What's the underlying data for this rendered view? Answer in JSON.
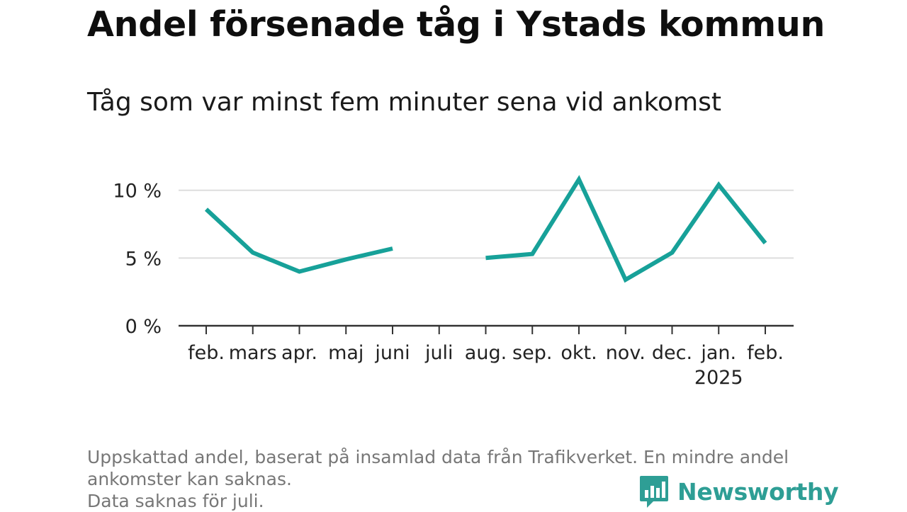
{
  "header": {
    "title": "Andel försenade tåg i Ystads kommun",
    "subtitle": "Tåg som var minst fem minuter sena vid ankomst"
  },
  "chart_data": {
    "type": "line",
    "categories": [
      "feb.",
      "mars",
      "apr.",
      "maj",
      "juni",
      "juli",
      "aug.",
      "sep.",
      "okt.",
      "nov.",
      "dec.",
      "jan.",
      "feb."
    ],
    "category_sublabels": [
      "",
      "",
      "",
      "",
      "",
      "",
      "",
      "",
      "",
      "",
      "",
      "2025",
      ""
    ],
    "series": [
      {
        "values": [
          8.6,
          5.4,
          4.0,
          4.9,
          5.7,
          null,
          5.0,
          5.3,
          10.8,
          3.4,
          5.4,
          10.4,
          6.1
        ]
      }
    ],
    "ylim": [
      0,
      11.5
    ],
    "yticks": [
      0,
      5,
      10
    ],
    "ytick_labels": [
      "0 %",
      "5 %",
      "10 %"
    ],
    "xlabel": "",
    "ylabel": "",
    "grid": true,
    "line_color": "#17a199",
    "grid_color": "#dddddd",
    "axis_color": "#333333"
  },
  "footnote": {
    "line1": "Uppskattad andel, baserat på insamlad data från Trafikverket. En mindre andel",
    "line2": "ankomster kan saknas.",
    "line3": "Data saknas för juli."
  },
  "brand": {
    "name": "Newsworthy",
    "icon": "bar-chart-speech-bubble-icon",
    "color": "#2e9e95"
  }
}
